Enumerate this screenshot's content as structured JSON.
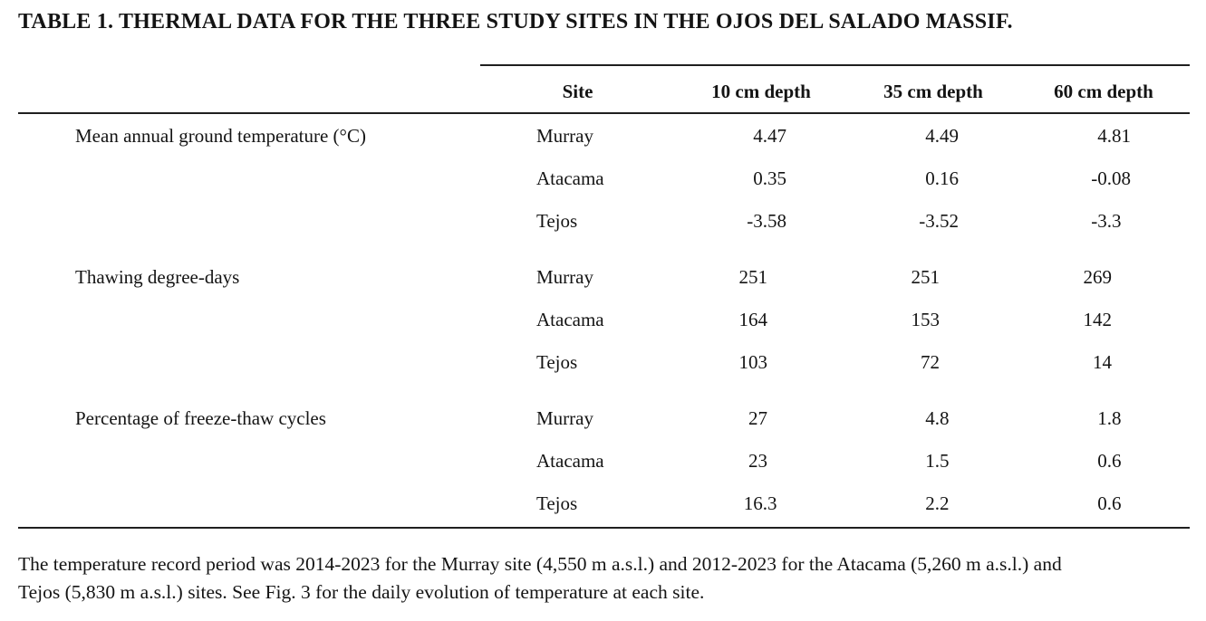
{
  "title": "TABLE 1. THERMAL DATA FOR THE THREE STUDY SITES IN THE OJOS DEL SALADO MASSIF.",
  "table": {
    "columns": [
      "Site",
      "10 cm depth",
      "35 cm depth",
      "60 cm depth"
    ],
    "groups": [
      {
        "label": "Mean annual ground temperature (°C)",
        "rows": [
          {
            "site": "Murray",
            "values": [
              "4.47",
              "4.49",
              "4.81"
            ]
          },
          {
            "site": "Atacama",
            "values": [
              "0.35",
              "0.16",
              "-0.08"
            ]
          },
          {
            "site": "Tejos",
            "values": [
              "-3.58",
              "-3.52",
              "-3.3"
            ]
          }
        ]
      },
      {
        "label": "Thawing degree-days",
        "rows": [
          {
            "site": "Murray",
            "values": [
              "251",
              "251",
              "269"
            ]
          },
          {
            "site": "Atacama",
            "values": [
              "164",
              "153",
              "142"
            ]
          },
          {
            "site": "Tejos",
            "values": [
              "103",
              "72",
              "14"
            ]
          }
        ]
      },
      {
        "label": "Percentage of freeze-thaw cycles",
        "rows": [
          {
            "site": "Murray",
            "values": [
              "27",
              "4.8",
              "1.8"
            ]
          },
          {
            "site": "Atacama",
            "values": [
              "23",
              "1.5",
              "0.6"
            ]
          },
          {
            "site": "Tejos",
            "values": [
              "16.3",
              "2.2",
              "0.6"
            ]
          }
        ]
      }
    ]
  },
  "footnote": {
    "lines": [
      "The temperature record period was 2014-2023 for the Murray site (4,550 m a.s.l.) and 2012-2023 for the Atacama (5,260 m a.s.l.) and",
      "Tejos (5,830 m a.s.l.) sites. See Fig. 3 for the daily evolution of temperature at each site."
    ]
  },
  "colors": {
    "text": "#141414",
    "rule": "#1f1f1f",
    "background": "#ffffff"
  }
}
